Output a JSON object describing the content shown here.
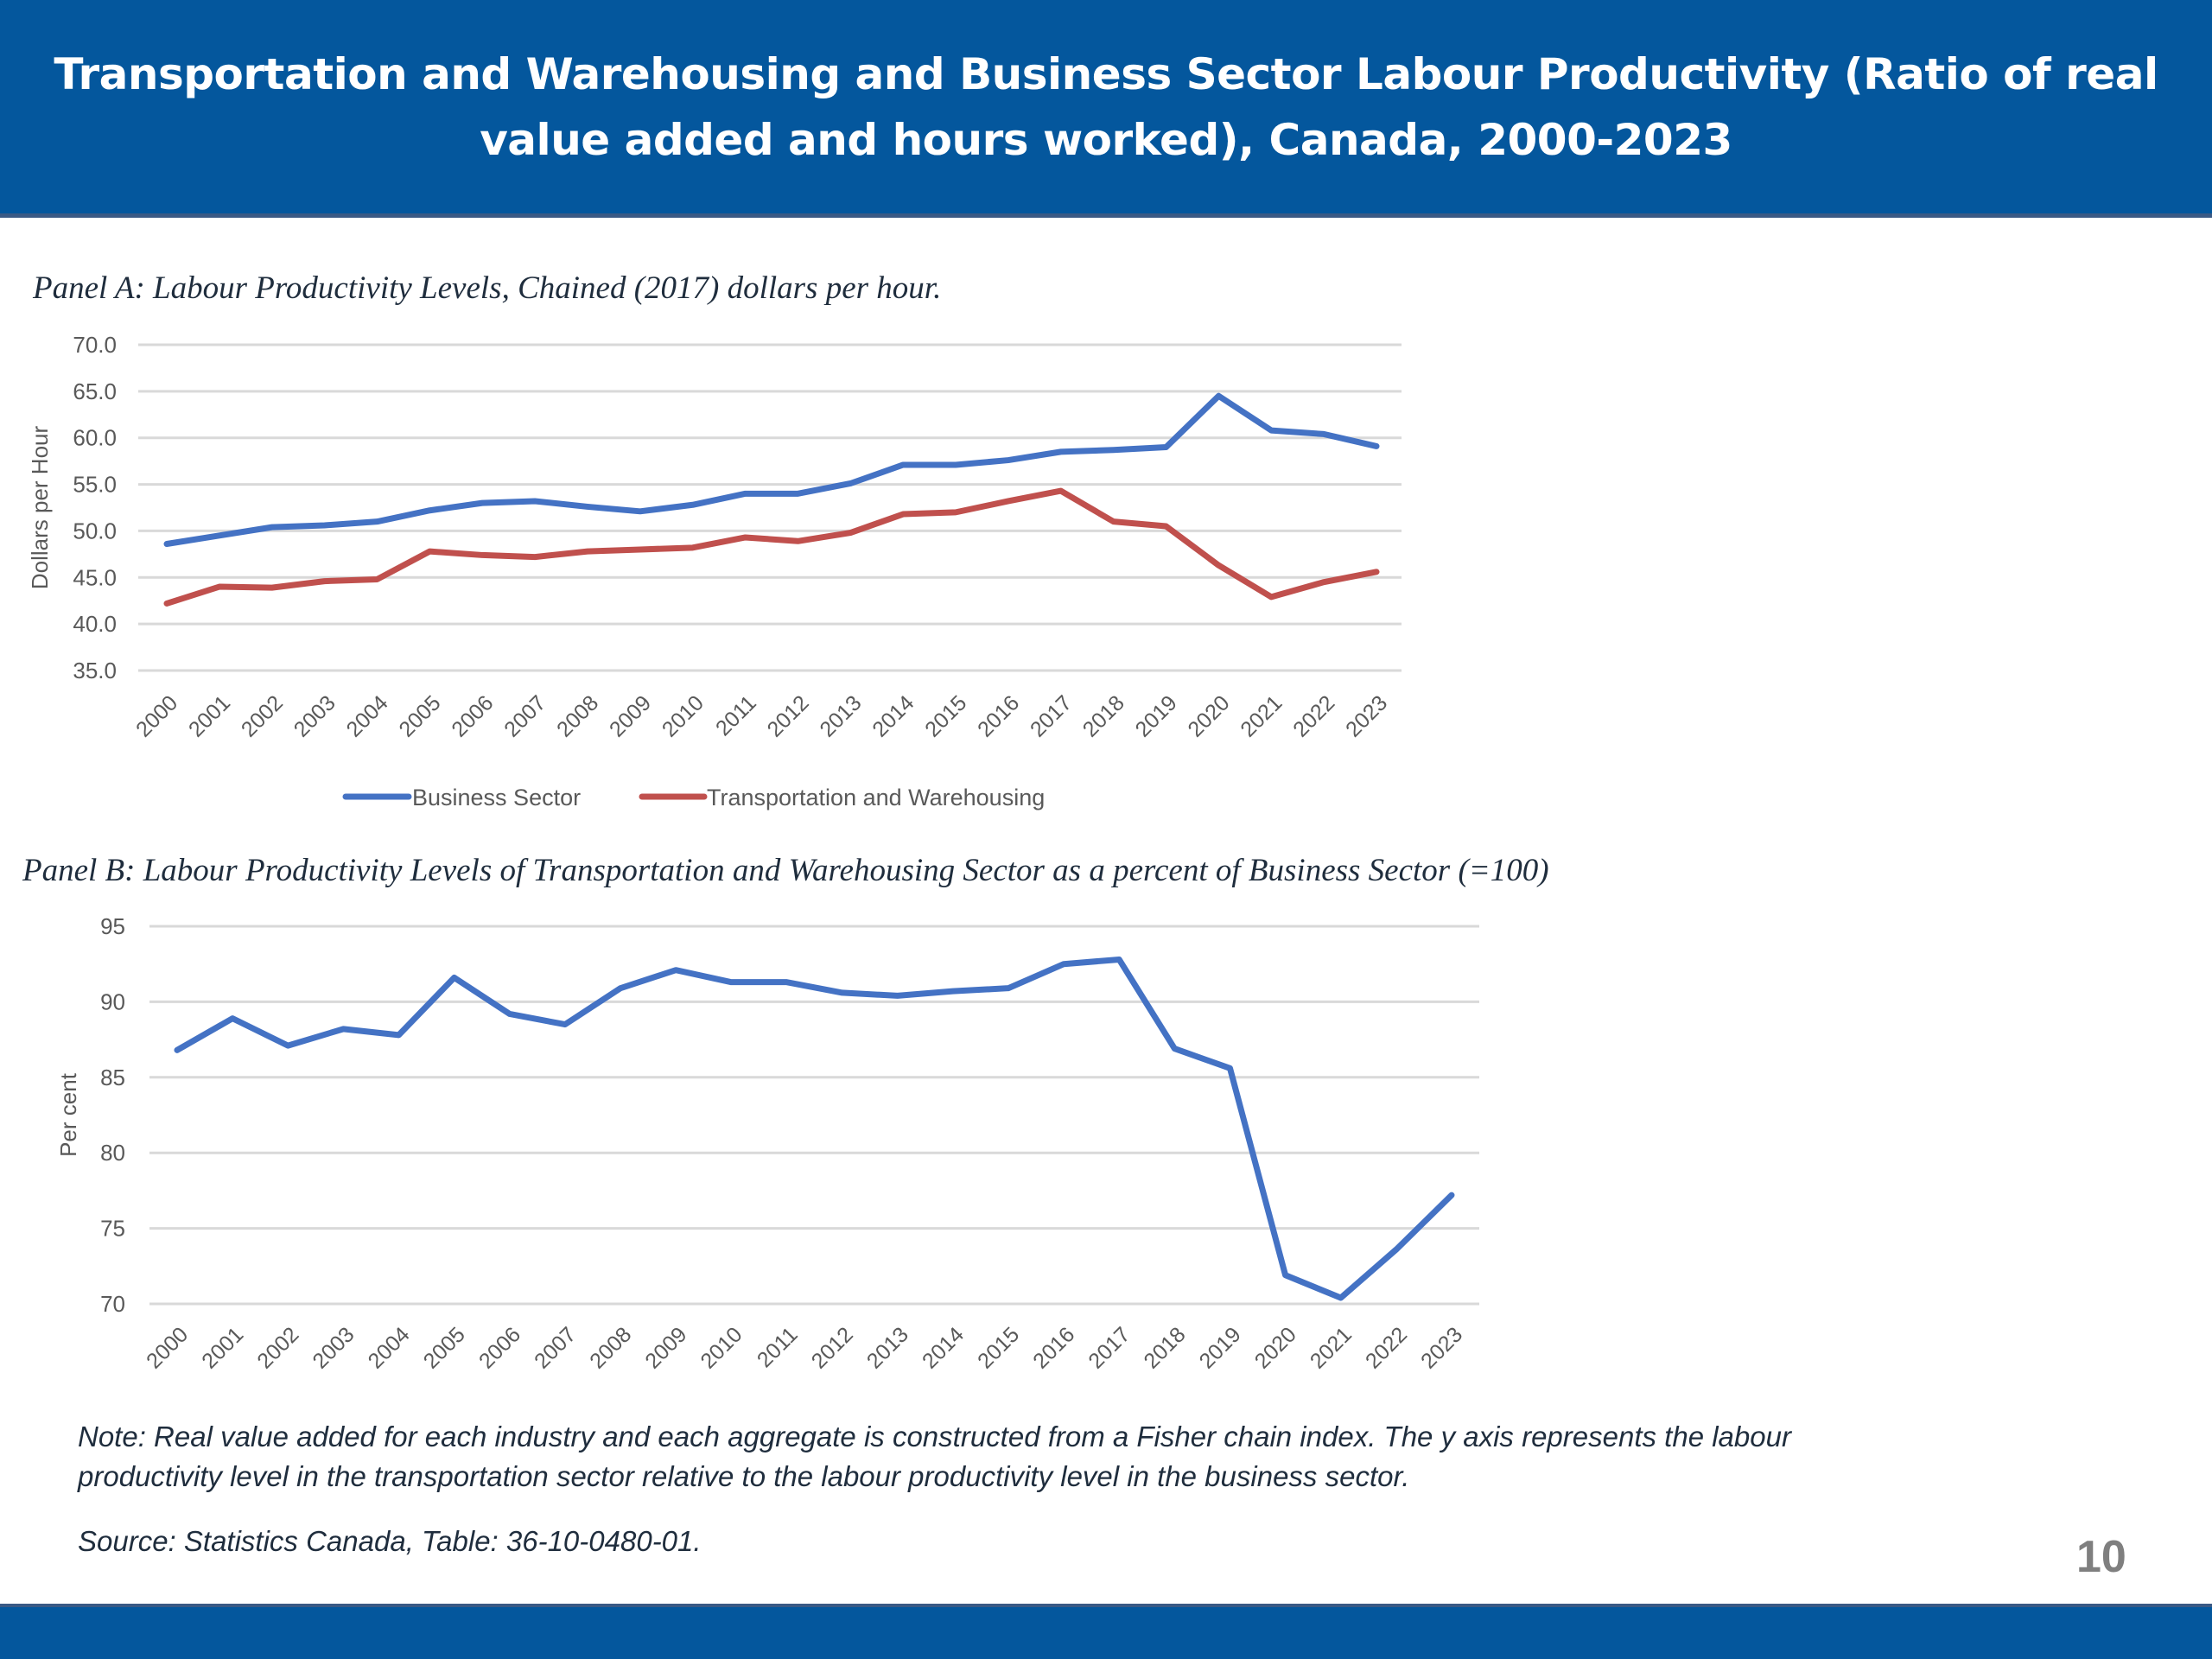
{
  "header": {
    "title": "Transportation and Warehousing and Business Sector Labour Productivity (Ratio of real value added and hours worked), Canada, 2000-2023"
  },
  "colors": {
    "header_band": "#04579d",
    "business_sector": "#4472c4",
    "transportation": "#c0504d",
    "gridline": "#d9d9d9",
    "tick_text": "#595959"
  },
  "chart_data": [
    {
      "type": "line",
      "title": "Panel A: Labour Productivity Levels, Chained (2017) dollars per hour.",
      "xlabel": "",
      "ylabel": "Dollars per Hour",
      "ylim": [
        35.0,
        70.0
      ],
      "yticks": [
        "35.0",
        "40.0",
        "45.0",
        "50.0",
        "55.0",
        "60.0",
        "65.0",
        "70.0"
      ],
      "grid": true,
      "legend": "bottom",
      "categories": [
        "2000",
        "2001",
        "2002",
        "2003",
        "2004",
        "2005",
        "2006",
        "2007",
        "2008",
        "2009",
        "2010",
        "2011",
        "2012",
        "2013",
        "2014",
        "2015",
        "2016",
        "2017",
        "2018",
        "2019",
        "2020",
        "2021",
        "2022",
        "2023"
      ],
      "series": [
        {
          "name": "Business Sector",
          "color": "#4472c4",
          "values": [
            48.6,
            49.5,
            50.4,
            50.6,
            51.0,
            52.2,
            53.0,
            53.2,
            52.6,
            52.1,
            52.8,
            54.0,
            54.0,
            55.1,
            57.1,
            57.1,
            57.6,
            58.5,
            58.7,
            59.0,
            64.5,
            60.8,
            60.4,
            59.1
          ]
        },
        {
          "name": "Transportation and Warehousing",
          "color": "#c0504d",
          "values": [
            42.2,
            44.0,
            43.9,
            44.6,
            44.8,
            47.8,
            47.4,
            47.2,
            47.8,
            48.0,
            48.2,
            49.3,
            48.9,
            49.8,
            51.8,
            52.0,
            53.2,
            54.3,
            51.0,
            50.5,
            46.3,
            42.9,
            44.5,
            45.6
          ]
        }
      ]
    },
    {
      "type": "line",
      "title": "Panel B:  Labour Productivity Levels of Transportation and Warehousing Sector as a percent of Business Sector (=100)",
      "xlabel": "",
      "ylabel": "Per cent",
      "ylim": [
        70,
        95
      ],
      "yticks": [
        "70",
        "75",
        "80",
        "85",
        "90",
        "95"
      ],
      "grid": true,
      "legend": "none",
      "categories": [
        "2000",
        "2001",
        "2002",
        "2003",
        "2004",
        "2005",
        "2006",
        "2007",
        "2008",
        "2009",
        "2010",
        "2011",
        "2012",
        "2013",
        "2014",
        "2015",
        "2016",
        "2017",
        "2018",
        "2019",
        "2020",
        "2021",
        "2022",
        "2023"
      ],
      "series": [
        {
          "name": "Transportation and Warehousing as % of Business Sector",
          "color": "#4472c4",
          "values": [
            86.8,
            88.9,
            87.1,
            88.2,
            87.8,
            91.6,
            89.2,
            88.5,
            90.9,
            92.1,
            91.3,
            91.3,
            90.6,
            90.4,
            90.7,
            90.9,
            92.5,
            92.8,
            86.9,
            85.6,
            71.9,
            70.4,
            73.6,
            77.2
          ]
        }
      ]
    }
  ],
  "notes": {
    "note": "Note: Real value added for each industry and each aggregate is constructed from a Fisher chain index. The y axis represents the labour productivity level in the transportation sector relative to the labour productivity level in the business sector.",
    "source": "Source: Statistics Canada, Table: 36-10-0480-01."
  },
  "page_number": "10"
}
